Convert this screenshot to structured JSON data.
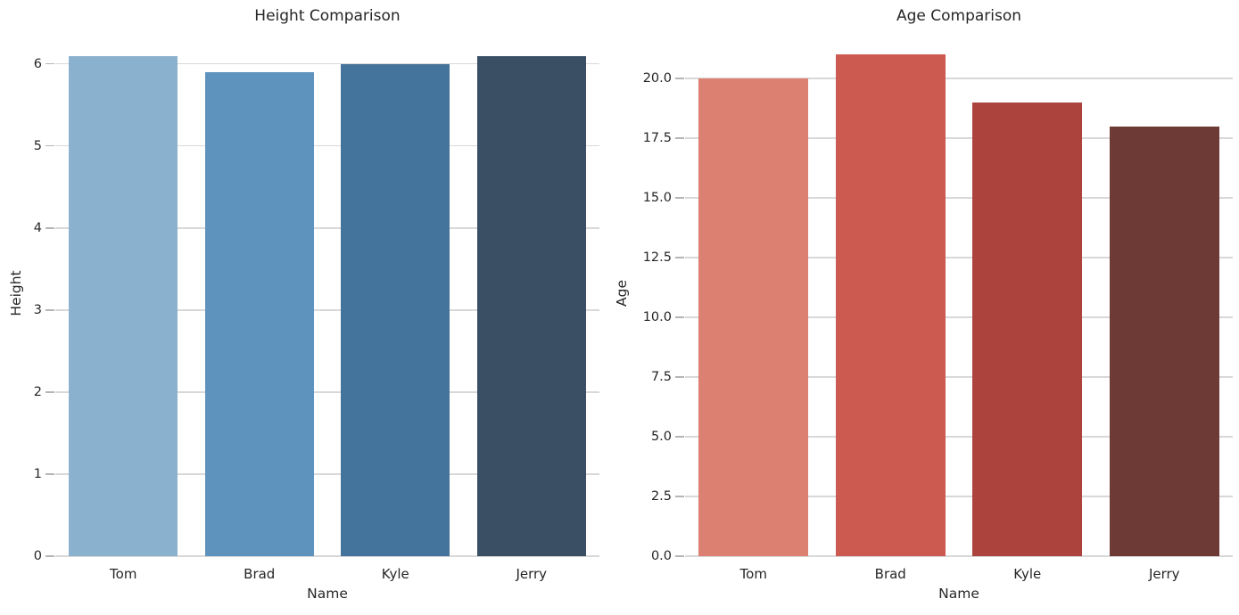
{
  "figure": {
    "background": "#ffffff",
    "text_color": "#262626",
    "grid_color": "#d8d8d8",
    "tick_color": "#b5b5b5"
  },
  "chart_data": [
    {
      "type": "bar",
      "title": "Height Comparison",
      "xlabel": "Name",
      "ylabel": "Height",
      "categories": [
        "Tom",
        "Brad",
        "Kyle",
        "Jerry"
      ],
      "values": [
        6.1,
        5.9,
        6.0,
        6.1
      ],
      "ylim": [
        0,
        6.42
      ],
      "yticks": [
        {
          "value": 0,
          "label": "0"
        },
        {
          "value": 1,
          "label": "1"
        },
        {
          "value": 2,
          "label": "2"
        },
        {
          "value": 3,
          "label": "3"
        },
        {
          "value": 4,
          "label": "4"
        },
        {
          "value": 5,
          "label": "5"
        },
        {
          "value": 6,
          "label": "6"
        }
      ],
      "bar_colors": [
        "#8ab1cd",
        "#5d93bc",
        "#44739c",
        "#3a4f64"
      ],
      "grid": true,
      "legend": null
    },
    {
      "type": "bar",
      "title": "Age Comparison",
      "xlabel": "Name",
      "ylabel": "Age",
      "categories": [
        "Tom",
        "Brad",
        "Kyle",
        "Jerry"
      ],
      "values": [
        20,
        21,
        19,
        18
      ],
      "ylim": [
        0,
        22.06
      ],
      "yticks": [
        {
          "value": 0,
          "label": "0.0"
        },
        {
          "value": 2.5,
          "label": "2.5"
        },
        {
          "value": 5,
          "label": "5.0"
        },
        {
          "value": 7.5,
          "label": "7.5"
        },
        {
          "value": 10,
          "label": "10.0"
        },
        {
          "value": 12.5,
          "label": "12.5"
        },
        {
          "value": 15,
          "label": "15.0"
        },
        {
          "value": 17.5,
          "label": "17.5"
        },
        {
          "value": 20,
          "label": "20.0"
        }
      ],
      "bar_colors": [
        "#dc8172",
        "#cd5a50",
        "#ac433c",
        "#6e3a35"
      ],
      "grid": true,
      "legend": null
    }
  ]
}
